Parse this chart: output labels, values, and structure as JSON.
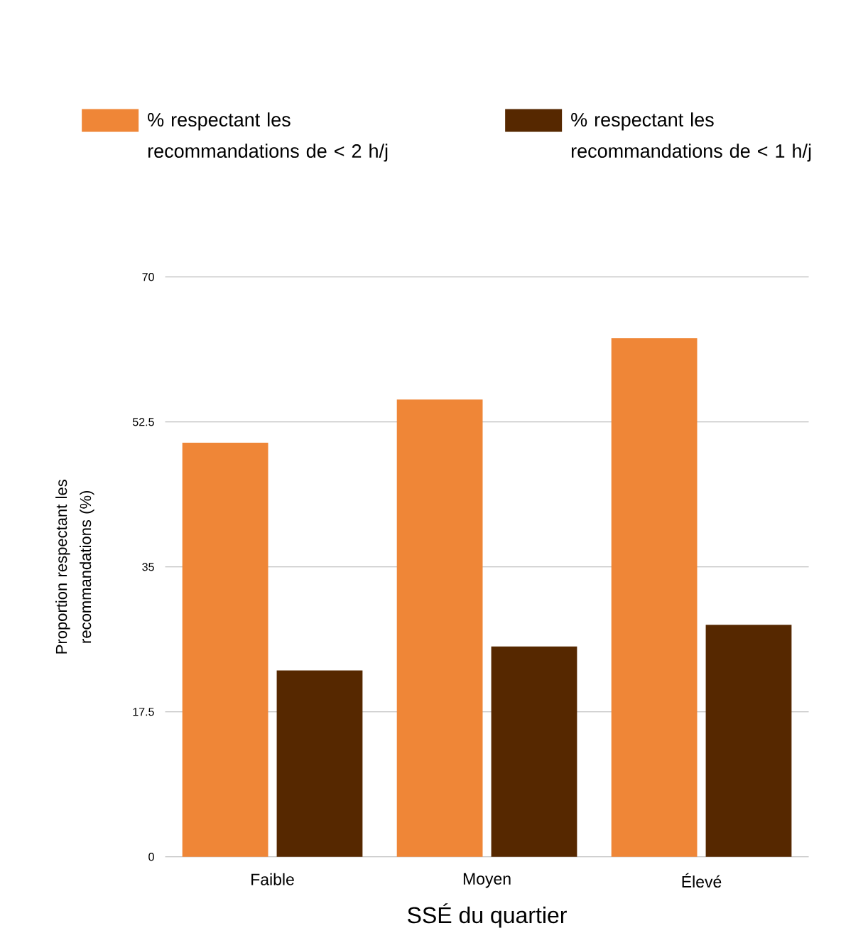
{
  "chart_data": {
    "type": "bar",
    "categories": [
      "Faible",
      "Moyen",
      "Élevé"
    ],
    "series": [
      {
        "name": "% respectant les recommandations de < 2 h/j",
        "color": "#ef8637",
        "values": [
          50,
          55.2,
          62.6
        ]
      },
      {
        "name": "% respectant les recommandations de < 1 h/j",
        "color": "#562800",
        "values": [
          22.5,
          25.4,
          28
        ]
      }
    ],
    "xlabel": "SSÉ du quartier",
    "ylabel": "Proportion respectant les recommandations (%)",
    "ylim": [
      0,
      70
    ],
    "yticks": [
      0,
      17.5,
      35,
      52.5,
      70
    ],
    "grid": "y",
    "legend": "top"
  }
}
